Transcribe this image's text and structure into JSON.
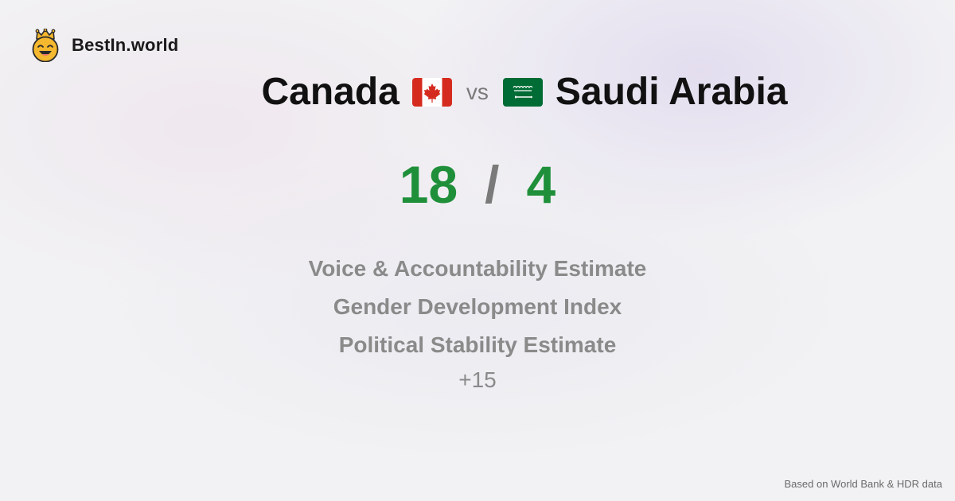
{
  "brand": {
    "name": "BestIn.world",
    "logo_icon": "crowned-smiley-icon",
    "logo_color": "#f5b82e"
  },
  "comparison": {
    "country_a": "Canada",
    "flag_a_icon": "canada-flag-icon",
    "vs_label": "vs",
    "country_b": "Saudi Arabia",
    "flag_b_icon": "saudi-arabia-flag-icon"
  },
  "score": {
    "a": "18",
    "separator": "/",
    "b": "4",
    "color": "#1f8f3a"
  },
  "metrics": [
    "Voice & Accountability Estimate",
    "Gender Development Index",
    "Political Stability Estimate"
  ],
  "more_label": "+15",
  "footer": {
    "source_text": "Based on World Bank & HDR data"
  }
}
